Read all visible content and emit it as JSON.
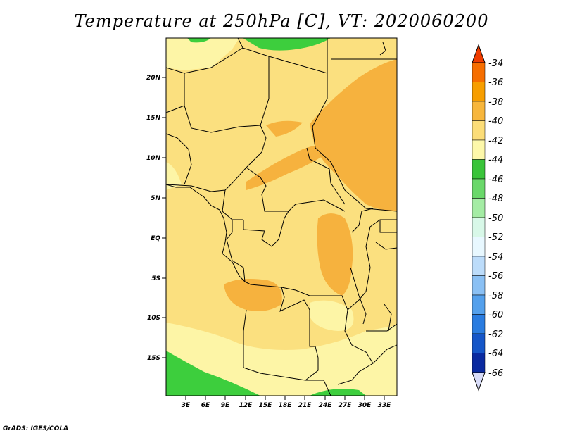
{
  "title": "Temperature at 250hPa [C], VT: 2020060200",
  "credit": "GrADS: IGES/COLA",
  "map": {
    "lat_ticks": [
      "20N",
      "15N",
      "10N",
      "5N",
      "EQ",
      "5S",
      "10S",
      "15S"
    ],
    "lon_ticks": [
      "3E",
      "6E",
      "9E",
      "12E",
      "15E",
      "18E",
      "21E",
      "24E",
      "27E",
      "30E",
      "33E"
    ],
    "colors": {
      "t_42_40": "#fbe07f",
      "t_44_42": "#fdf5a6",
      "t_40_38": "#f6b23e",
      "t_below_44": "#3dce3d",
      "boundary": "#000000"
    }
  },
  "colorbar": {
    "labels": [
      "-34",
      "-36",
      "-38",
      "-40",
      "-42",
      "-44",
      "-46",
      "-48",
      "-50",
      "-52",
      "-54",
      "-56",
      "-58",
      "-60",
      "-62",
      "-64",
      "-66"
    ],
    "colors": [
      "#f03c00",
      "#f66e00",
      "#f79e00",
      "#f7b63c",
      "#fcdd78",
      "#fdf8aa",
      "#3ac43a",
      "#6ad86a",
      "#a4eca4",
      "#d8f8e8",
      "#e8f8ff",
      "#bcdcfa",
      "#8ac0f4",
      "#54a0ec",
      "#2a7ce0",
      "#1556c8",
      "#0a2aa0",
      "#00106a"
    ],
    "top_triangle_color": "#f03c00",
    "bottom_triangle_color": "#d8dcf8"
  }
}
